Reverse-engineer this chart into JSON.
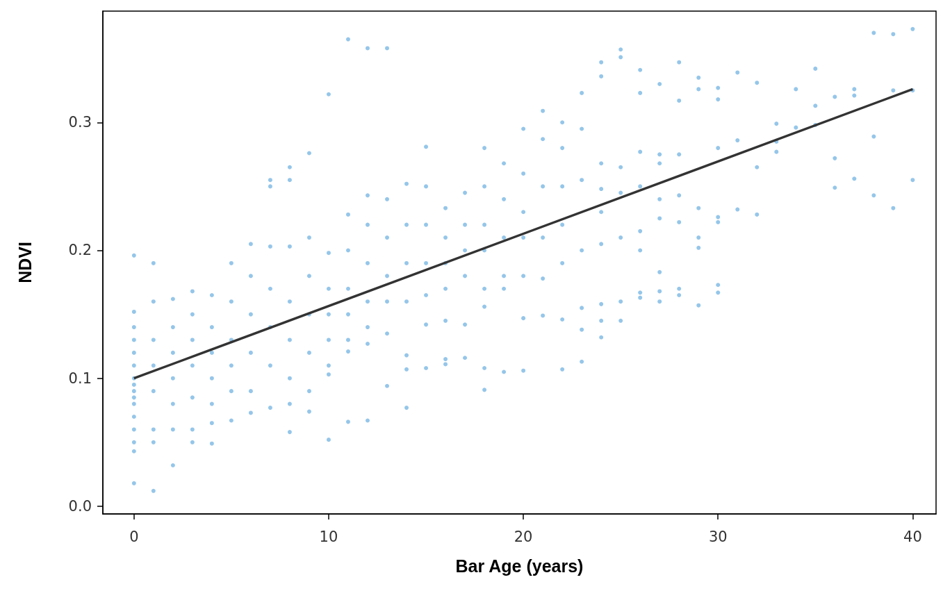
{
  "chart_data": {
    "type": "scatter",
    "xlabel": "Bar Age (years)",
    "ylabel": "NDVI",
    "xlim": [
      -1.6,
      41.2
    ],
    "ylim": [
      -0.006,
      0.387
    ],
    "xticks": [
      0,
      10,
      20,
      30,
      40
    ],
    "yticks": [
      {
        "value": 0,
        "label": "0.0"
      },
      0.1,
      0.2,
      0.3
    ],
    "grid": false,
    "series": [
      {
        "marker": "circle",
        "color": "#7ab8e3",
        "x": [
          0,
          0,
          0,
          0,
          0,
          0,
          0,
          0,
          0,
          0,
          0,
          0,
          0,
          0,
          0,
          0,
          1,
          1,
          1,
          1,
          1,
          1,
          1,
          1,
          2,
          2,
          2,
          2,
          2,
          2,
          2,
          3,
          3,
          3,
          3,
          3,
          3,
          3,
          4,
          4,
          4,
          4,
          4,
          4,
          4,
          5,
          5,
          5,
          5,
          5,
          5,
          6,
          6,
          6,
          6,
          6,
          6,
          7,
          7,
          7,
          7,
          7,
          7,
          7,
          8,
          8,
          8,
          8,
          8,
          8,
          8,
          8,
          9,
          9,
          9,
          9,
          9,
          9,
          9,
          10,
          10,
          10,
          10,
          10,
          10,
          10,
          10,
          11,
          11,
          11,
          11,
          11,
          11,
          11,
          11,
          12,
          12,
          12,
          12,
          12,
          12,
          12,
          12,
          13,
          13,
          13,
          13,
          13,
          13,
          13,
          14,
          14,
          14,
          14,
          14,
          14,
          14,
          15,
          15,
          15,
          15,
          15,
          15,
          15,
          16,
          16,
          16,
          16,
          16,
          16,
          16,
          17,
          17,
          17,
          17,
          17,
          17,
          18,
          18,
          18,
          18,
          18,
          18,
          18,
          18,
          19,
          19,
          19,
          19,
          19,
          19,
          20,
          20,
          20,
          20,
          20,
          20,
          20,
          21,
          21,
          21,
          21,
          21,
          21,
          22,
          22,
          22,
          22,
          22,
          22,
          22,
          23,
          23,
          23,
          23,
          23,
          23,
          23,
          24,
          24,
          24,
          24,
          24,
          24,
          24,
          24,
          24,
          25,
          25,
          25,
          25,
          25,
          25,
          25,
          26,
          26,
          26,
          26,
          26,
          26,
          26,
          26,
          27,
          27,
          27,
          27,
          27,
          27,
          27,
          27,
          28,
          28,
          28,
          28,
          28,
          28,
          28,
          29,
          29,
          29,
          29,
          29,
          29,
          30,
          30,
          30,
          30,
          30,
          30,
          30,
          31,
          31,
          31,
          32,
          32,
          32,
          33,
          33,
          33,
          34,
          34,
          35,
          35,
          35,
          36,
          36,
          36,
          37,
          37,
          37,
          38,
          38,
          38,
          39,
          39,
          39,
          40,
          40,
          40
        ],
        "values": [
          0.196,
          0.152,
          0.14,
          0.13,
          0.12,
          0.11,
          0.1,
          0.095,
          0.09,
          0.085,
          0.08,
          0.07,
          0.06,
          0.05,
          0.043,
          0.018,
          0.19,
          0.16,
          0.13,
          0.11,
          0.09,
          0.06,
          0.05,
          0.012,
          0.162,
          0.14,
          0.12,
          0.1,
          0.08,
          0.06,
          0.032,
          0.168,
          0.15,
          0.13,
          0.11,
          0.085,
          0.06,
          0.05,
          0.165,
          0.14,
          0.12,
          0.1,
          0.08,
          0.065,
          0.049,
          0.19,
          0.16,
          0.13,
          0.11,
          0.09,
          0.067,
          0.205,
          0.18,
          0.15,
          0.12,
          0.09,
          0.073,
          0.255,
          0.25,
          0.203,
          0.17,
          0.14,
          0.11,
          0.077,
          0.265,
          0.255,
          0.203,
          0.16,
          0.13,
          0.1,
          0.08,
          0.058,
          0.276,
          0.21,
          0.18,
          0.15,
          0.12,
          0.09,
          0.074,
          0.322,
          0.198,
          0.17,
          0.15,
          0.13,
          0.11,
          0.103,
          0.052,
          0.365,
          0.228,
          0.2,
          0.17,
          0.15,
          0.13,
          0.121,
          0.066,
          0.358,
          0.243,
          0.22,
          0.19,
          0.16,
          0.14,
          0.127,
          0.067,
          0.358,
          0.24,
          0.21,
          0.18,
          0.16,
          0.135,
          0.094,
          0.252,
          0.22,
          0.19,
          0.16,
          0.118,
          0.107,
          0.077,
          0.281,
          0.25,
          0.22,
          0.19,
          0.165,
          0.142,
          0.108,
          0.233,
          0.21,
          0.19,
          0.17,
          0.145,
          0.115,
          0.111,
          0.245,
          0.22,
          0.2,
          0.18,
          0.142,
          0.116,
          0.28,
          0.25,
          0.22,
          0.2,
          0.17,
          0.156,
          0.108,
          0.091,
          0.268,
          0.24,
          0.21,
          0.18,
          0.17,
          0.105,
          0.295,
          0.26,
          0.23,
          0.21,
          0.18,
          0.147,
          0.106,
          0.309,
          0.287,
          0.25,
          0.21,
          0.178,
          0.149,
          0.3,
          0.28,
          0.25,
          0.22,
          0.19,
          0.146,
          0.107,
          0.323,
          0.295,
          0.255,
          0.2,
          0.155,
          0.138,
          0.113,
          0.347,
          0.336,
          0.268,
          0.248,
          0.23,
          0.205,
          0.158,
          0.145,
          0.132,
          0.357,
          0.351,
          0.265,
          0.245,
          0.21,
          0.16,
          0.145,
          0.341,
          0.323,
          0.277,
          0.25,
          0.215,
          0.2,
          0.167,
          0.163,
          0.33,
          0.275,
          0.268,
          0.24,
          0.225,
          0.183,
          0.168,
          0.16,
          0.347,
          0.317,
          0.275,
          0.243,
          0.222,
          0.17,
          0.165,
          0.335,
          0.326,
          0.233,
          0.21,
          0.202,
          0.157,
          0.327,
          0.318,
          0.28,
          0.226,
          0.222,
          0.173,
          0.167,
          0.339,
          0.286,
          0.232,
          0.331,
          0.265,
          0.228,
          0.299,
          0.285,
          0.277,
          0.326,
          0.296,
          0.342,
          0.313,
          0.298,
          0.32,
          0.272,
          0.249,
          0.326,
          0.321,
          0.256,
          0.37,
          0.289,
          0.243,
          0.369,
          0.325,
          0.233,
          0.373,
          0.325,
          0.255
        ]
      },
      {
        "type": "line",
        "color": "#333333",
        "x": [
          0,
          40
        ],
        "values": [
          0.1,
          0.326
        ]
      }
    ]
  }
}
